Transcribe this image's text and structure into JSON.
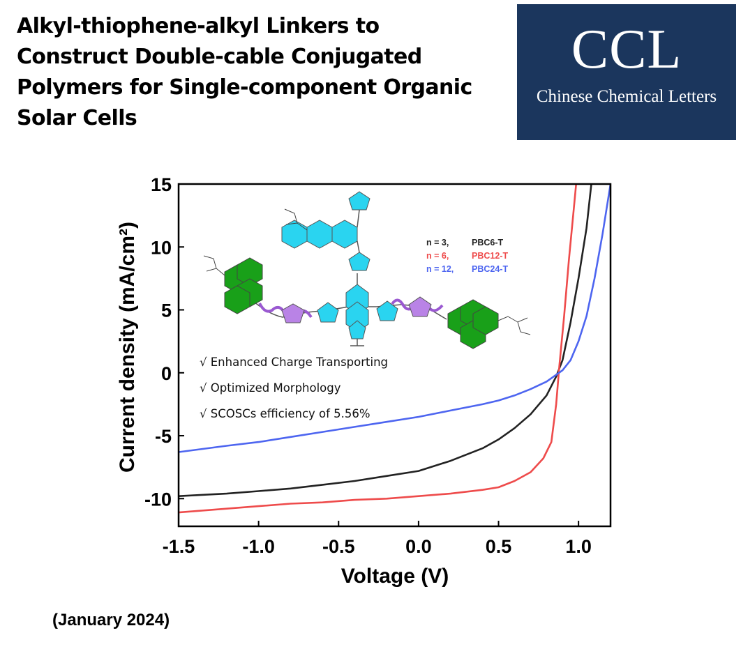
{
  "headline": "Alkyl-thiophene-alkyl Linkers to Construct Double-cable Conjugated Polymers for Single-component Organic Solar Cells",
  "journal_logo": {
    "abbr": "CCL",
    "name": "Chinese Chemical Letters",
    "background": "#1b365d"
  },
  "date": "(January 2024)",
  "chart_data": {
    "type": "line",
    "xlabel": "Voltage (V)",
    "ylabel": "Current density (mA/cm²)",
    "xlim": [
      -1.5,
      1.2
    ],
    "ylim": [
      -12.2,
      15
    ],
    "xticks": [
      "-1.5",
      "-1.0",
      "-0.5",
      "0.0",
      "0.5",
      "1.0"
    ],
    "yticks": [
      "15",
      "10",
      "5",
      "0",
      "-5",
      "-10"
    ],
    "legend_placement": "inside-top-right",
    "series": [
      {
        "name": "PBC6-T",
        "label_prefix": "n = 3,",
        "color": "#222222",
        "points": [
          [
            -1.5,
            -9.8
          ],
          [
            -1.2,
            -9.6
          ],
          [
            -1.0,
            -9.4
          ],
          [
            -0.8,
            -9.2
          ],
          [
            -0.6,
            -8.9
          ],
          [
            -0.4,
            -8.6
          ],
          [
            -0.2,
            -8.2
          ],
          [
            0.0,
            -7.8
          ],
          [
            0.2,
            -7.0
          ],
          [
            0.4,
            -6.0
          ],
          [
            0.5,
            -5.3
          ],
          [
            0.6,
            -4.4
          ],
          [
            0.7,
            -3.3
          ],
          [
            0.8,
            -1.8
          ],
          [
            0.86,
            -0.3
          ],
          [
            0.9,
            1.0
          ],
          [
            0.95,
            4.0
          ],
          [
            1.0,
            7.5
          ],
          [
            1.05,
            11.5
          ],
          [
            1.08,
            15.0
          ]
        ]
      },
      {
        "name": "PBC12-T",
        "label_prefix": "n = 6,",
        "color": "#ee4b4b",
        "points": [
          [
            -1.5,
            -11.1
          ],
          [
            -1.2,
            -10.8
          ],
          [
            -1.0,
            -10.6
          ],
          [
            -0.8,
            -10.4
          ],
          [
            -0.6,
            -10.3
          ],
          [
            -0.4,
            -10.1
          ],
          [
            -0.2,
            -10.0
          ],
          [
            0.0,
            -9.8
          ],
          [
            0.2,
            -9.6
          ],
          [
            0.4,
            -9.3
          ],
          [
            0.5,
            -9.1
          ],
          [
            0.6,
            -8.6
          ],
          [
            0.7,
            -7.9
          ],
          [
            0.78,
            -6.8
          ],
          [
            0.83,
            -5.5
          ],
          [
            0.86,
            -2.5
          ],
          [
            0.88,
            0.5
          ],
          [
            0.91,
            4.5
          ],
          [
            0.94,
            9.0
          ],
          [
            0.97,
            13.0
          ],
          [
            0.985,
            15.0
          ]
        ]
      },
      {
        "name": "PBC24-T",
        "label_prefix": "n = 12,",
        "color": "#4d65f0",
        "points": [
          [
            -1.5,
            -6.3
          ],
          [
            -1.2,
            -5.8
          ],
          [
            -1.0,
            -5.5
          ],
          [
            -0.8,
            -5.1
          ],
          [
            -0.6,
            -4.7
          ],
          [
            -0.4,
            -4.3
          ],
          [
            -0.2,
            -3.9
          ],
          [
            0.0,
            -3.5
          ],
          [
            0.2,
            -3.0
          ],
          [
            0.4,
            -2.5
          ],
          [
            0.5,
            -2.2
          ],
          [
            0.6,
            -1.8
          ],
          [
            0.7,
            -1.3
          ],
          [
            0.8,
            -0.7
          ],
          [
            0.9,
            0.2
          ],
          [
            0.95,
            1.0
          ],
          [
            1.0,
            2.5
          ],
          [
            1.05,
            4.5
          ],
          [
            1.1,
            7.5
          ],
          [
            1.15,
            11.0
          ],
          [
            1.2,
            15.0
          ]
        ]
      }
    ],
    "annotations": [
      "√ Enhanced Charge Transporting",
      "√ Optimized Morphology",
      "√ SCOSCs efficiency of 5.56%"
    ]
  }
}
